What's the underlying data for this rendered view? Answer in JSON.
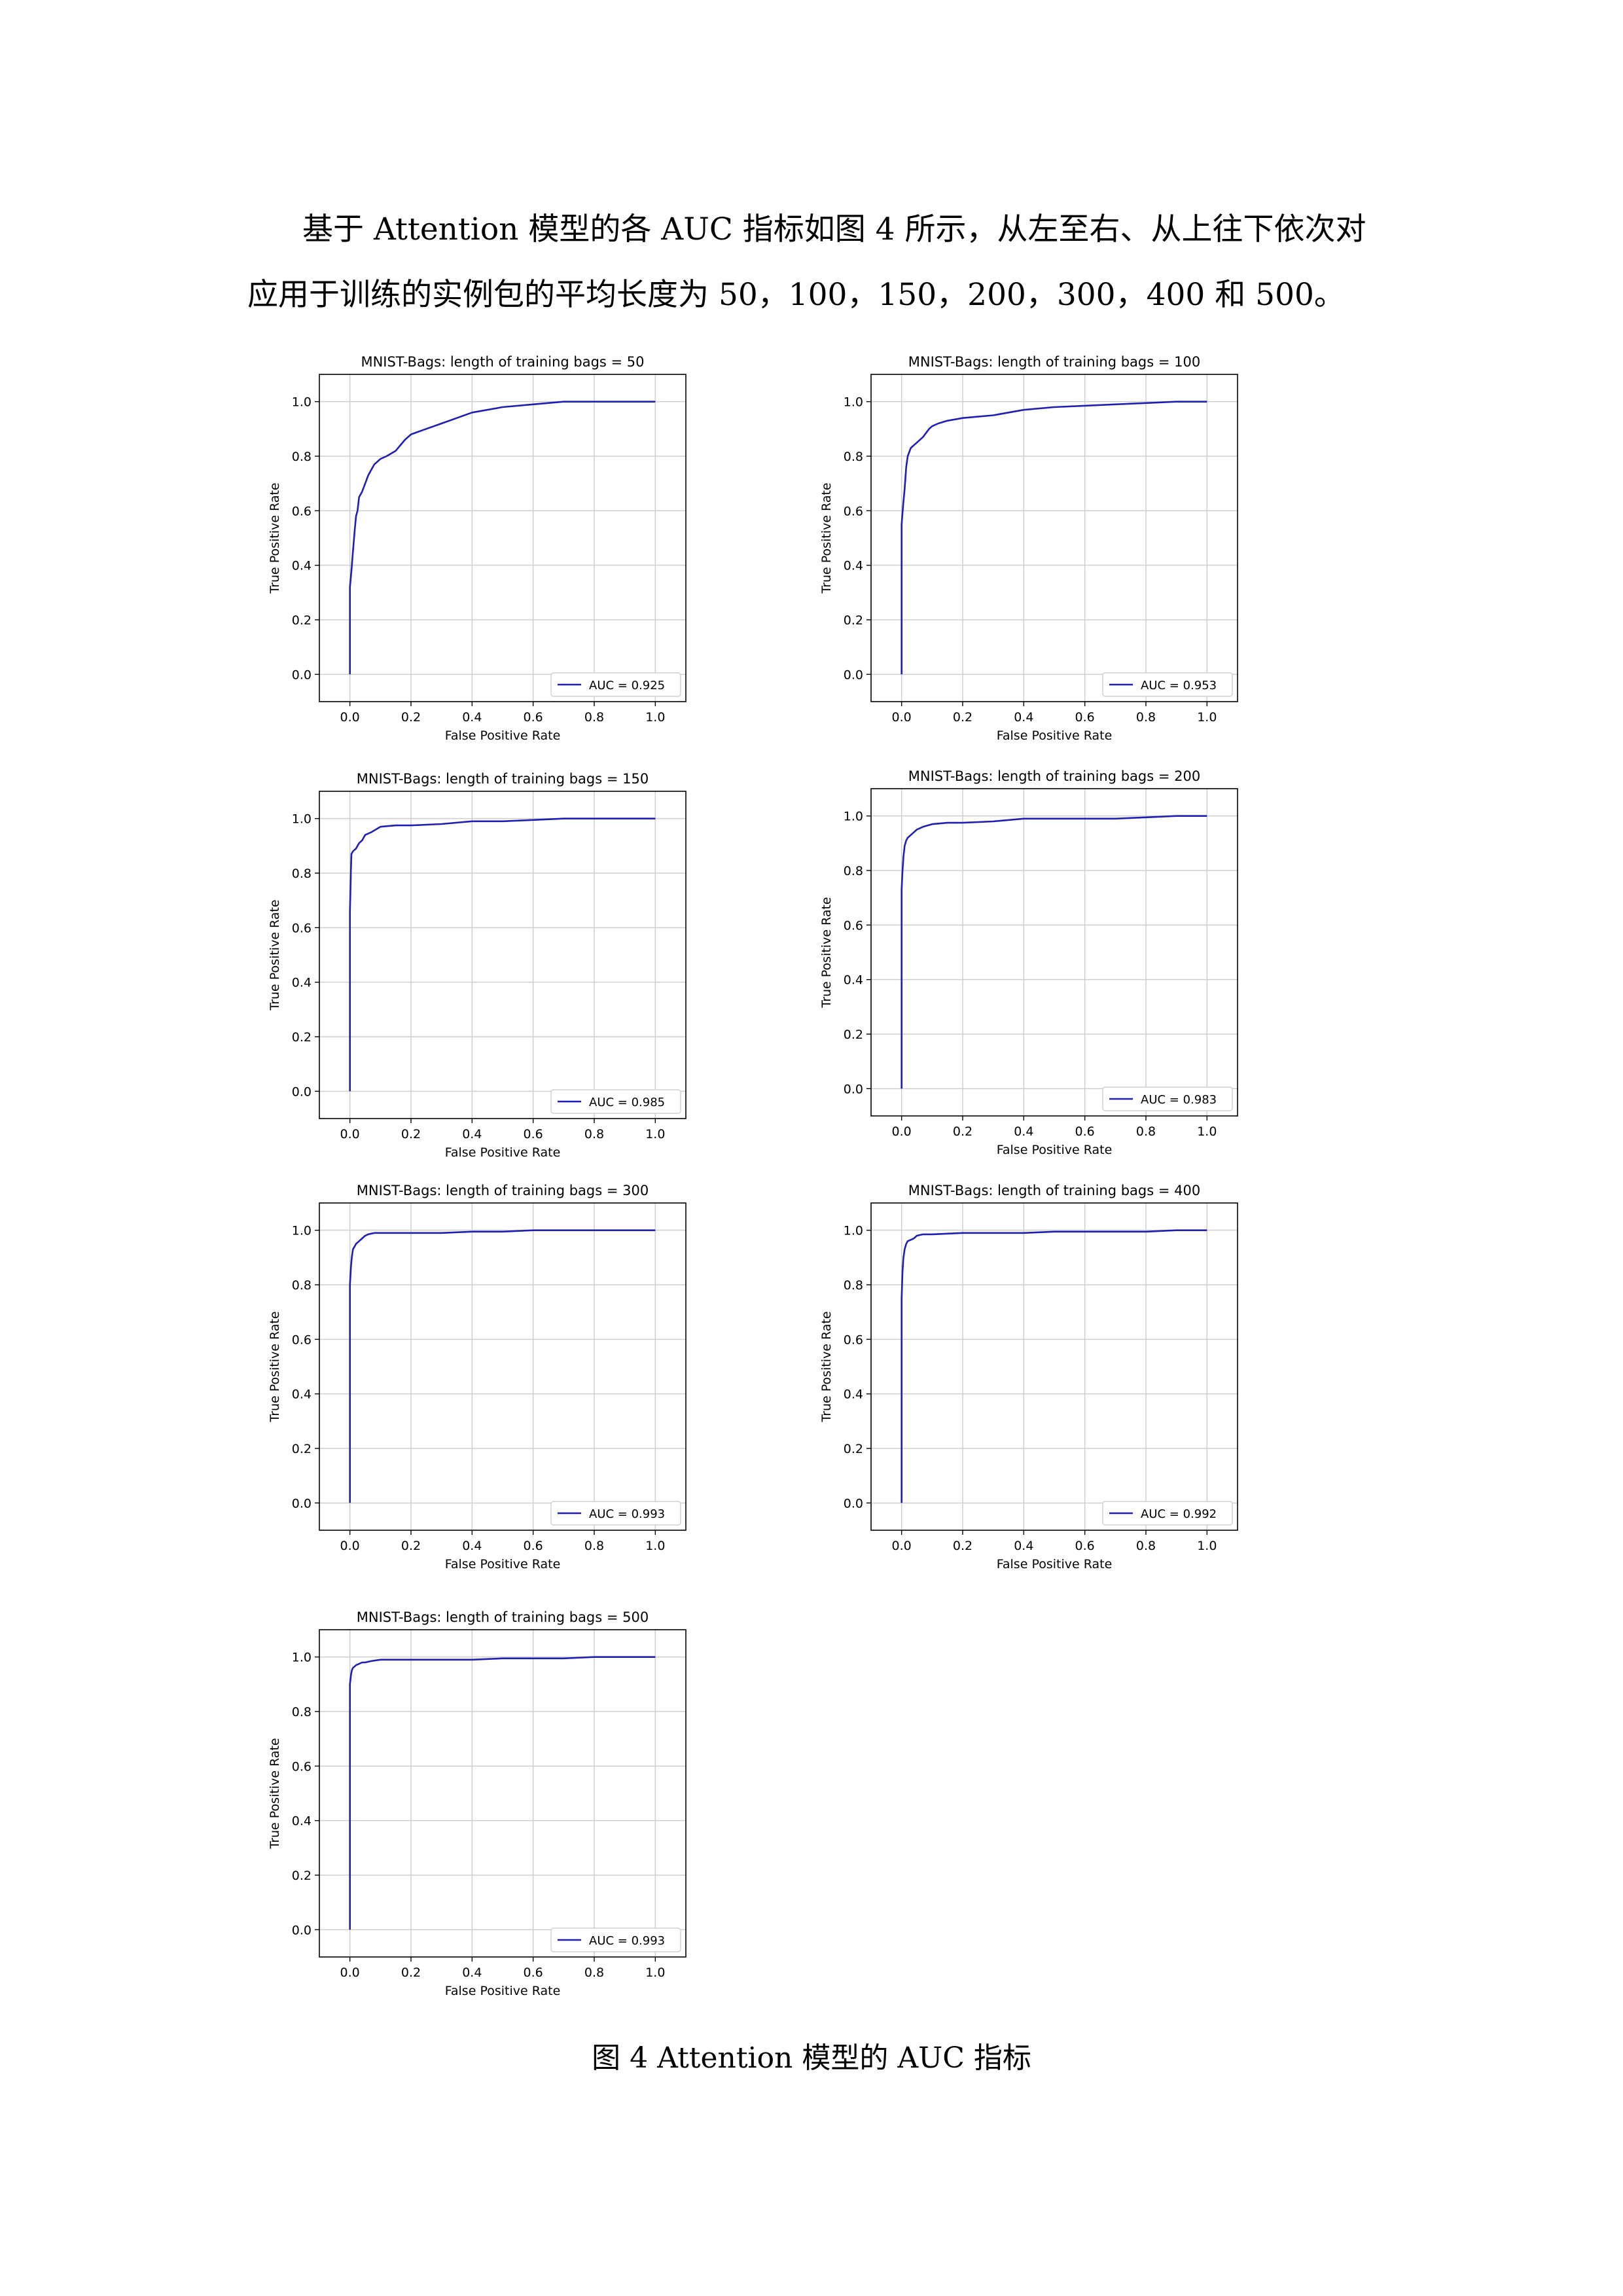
{
  "text": {
    "paragraph_line1": "基于 Attention 模型的各 AUC 指标如图 4 所示，从左至右、从上往下依次对",
    "paragraph_line2": "应用于训练的实例包的平均长度为 50，100，150，200，300，400 和 500。",
    "caption": "图 4 Attention 模型的 AUC 指标"
  },
  "colors": {
    "curve": "#1f1fb4",
    "grid": "#cfcfcf",
    "axis": "#000000"
  },
  "chart_data": [
    {
      "type": "line",
      "title": "MNIST-Bags: length of training bags = 50",
      "xlabel": "False Positive Rate",
      "ylabel": "True Positive Rate",
      "xlim": [
        -0.1,
        1.1
      ],
      "ylim": [
        -0.1,
        1.1
      ],
      "xticks": [
        "0.0",
        "0.2",
        "0.4",
        "0.6",
        "0.8",
        "1.0"
      ],
      "yticks": [
        "0.0",
        "0.2",
        "0.4",
        "0.6",
        "0.8",
        "1.0"
      ],
      "grid": true,
      "legend_position": "lower-right",
      "series": [
        {
          "name": "AUC = 0.925",
          "x": [
            0,
            0,
            0.005,
            0.01,
            0.015,
            0.02,
            0.025,
            0.03,
            0.04,
            0.05,
            0.06,
            0.07,
            0.08,
            0.1,
            0.12,
            0.15,
            0.18,
            0.2,
            0.25,
            0.3,
            0.35,
            0.4,
            0.45,
            0.5,
            0.6,
            0.7,
            0.8,
            0.9,
            1.0
          ],
          "y": [
            0,
            0.32,
            0.38,
            0.45,
            0.52,
            0.58,
            0.6,
            0.65,
            0.67,
            0.7,
            0.73,
            0.75,
            0.77,
            0.79,
            0.8,
            0.82,
            0.86,
            0.88,
            0.9,
            0.92,
            0.94,
            0.96,
            0.97,
            0.98,
            0.99,
            1.0,
            1.0,
            1.0,
            1.0
          ]
        }
      ]
    },
    {
      "type": "line",
      "title": "MNIST-Bags: length of training bags = 100",
      "xlabel": "False Positive Rate",
      "ylabel": "True Positive Rate",
      "xlim": [
        -0.1,
        1.1
      ],
      "ylim": [
        -0.1,
        1.1
      ],
      "xticks": [
        "0.0",
        "0.2",
        "0.4",
        "0.6",
        "0.8",
        "1.0"
      ],
      "yticks": [
        "0.0",
        "0.2",
        "0.4",
        "0.6",
        "0.8",
        "1.0"
      ],
      "grid": true,
      "legend_position": "lower-right",
      "series": [
        {
          "name": "AUC = 0.953",
          "x": [
            0,
            0,
            0.005,
            0.01,
            0.015,
            0.02,
            0.03,
            0.04,
            0.05,
            0.07,
            0.09,
            0.1,
            0.12,
            0.15,
            0.2,
            0.25,
            0.3,
            0.4,
            0.5,
            0.6,
            0.7,
            0.8,
            0.9,
            1.0
          ],
          "y": [
            0,
            0.55,
            0.62,
            0.68,
            0.76,
            0.8,
            0.83,
            0.84,
            0.85,
            0.87,
            0.9,
            0.91,
            0.92,
            0.93,
            0.94,
            0.945,
            0.95,
            0.97,
            0.98,
            0.985,
            0.99,
            0.995,
            1.0,
            1.0
          ]
        }
      ]
    },
    {
      "type": "line",
      "title": "MNIST-Bags: length of training bags = 150",
      "xlabel": "False Positive Rate",
      "ylabel": "True Positive Rate",
      "xlim": [
        -0.1,
        1.1
      ],
      "ylim": [
        -0.1,
        1.1
      ],
      "xticks": [
        "0.0",
        "0.2",
        "0.4",
        "0.6",
        "0.8",
        "1.0"
      ],
      "yticks": [
        "0.0",
        "0.2",
        "0.4",
        "0.6",
        "0.8",
        "1.0"
      ],
      "grid": true,
      "legend_position": "lower-right",
      "series": [
        {
          "name": "AUC = 0.985",
          "x": [
            0,
            0,
            0.003,
            0.005,
            0.01,
            0.02,
            0.03,
            0.04,
            0.05,
            0.07,
            0.1,
            0.15,
            0.2,
            0.3,
            0.4,
            0.5,
            0.6,
            0.7,
            0.8,
            0.9,
            1.0
          ],
          "y": [
            0,
            0.66,
            0.8,
            0.87,
            0.88,
            0.89,
            0.91,
            0.92,
            0.94,
            0.95,
            0.97,
            0.975,
            0.975,
            0.98,
            0.99,
            0.99,
            0.995,
            1.0,
            1.0,
            1.0,
            1.0
          ]
        }
      ]
    },
    {
      "type": "line",
      "title": "MNIST-Bags: length of training bags = 200",
      "xlabel": "False Positive Rate",
      "ylabel": "True Positive Rate",
      "xlim": [
        -0.1,
        1.1
      ],
      "ylim": [
        -0.1,
        1.1
      ],
      "xticks": [
        "0.0",
        "0.2",
        "0.4",
        "0.6",
        "0.8",
        "1.0"
      ],
      "yticks": [
        "0.0",
        "0.2",
        "0.4",
        "0.6",
        "0.8",
        "1.0"
      ],
      "grid": true,
      "legend_position": "lower-right",
      "series": [
        {
          "name": "AUC = 0.983",
          "x": [
            0,
            0,
            0.003,
            0.006,
            0.01,
            0.015,
            0.02,
            0.03,
            0.04,
            0.05,
            0.07,
            0.1,
            0.15,
            0.2,
            0.3,
            0.4,
            0.5,
            0.6,
            0.7,
            0.8,
            0.9,
            1.0
          ],
          "y": [
            0,
            0.73,
            0.8,
            0.85,
            0.89,
            0.91,
            0.92,
            0.93,
            0.94,
            0.95,
            0.96,
            0.97,
            0.975,
            0.975,
            0.98,
            0.99,
            0.99,
            0.99,
            0.99,
            0.995,
            1.0,
            1.0
          ]
        }
      ]
    },
    {
      "type": "line",
      "title": "MNIST-Bags: length of training bags = 300",
      "xlabel": "False Positive Rate",
      "ylabel": "True Positive Rate",
      "xlim": [
        -0.1,
        1.1
      ],
      "ylim": [
        -0.1,
        1.1
      ],
      "xticks": [
        "0.0",
        "0.2",
        "0.4",
        "0.6",
        "0.8",
        "1.0"
      ],
      "yticks": [
        "0.0",
        "0.2",
        "0.4",
        "0.6",
        "0.8",
        "1.0"
      ],
      "grid": true,
      "legend_position": "lower-right",
      "series": [
        {
          "name": "AUC = 0.993",
          "x": [
            0,
            0,
            0.003,
            0.006,
            0.01,
            0.015,
            0.02,
            0.03,
            0.04,
            0.05,
            0.06,
            0.08,
            0.1,
            0.2,
            0.3,
            0.4,
            0.5,
            0.6,
            0.8,
            1.0
          ],
          "y": [
            0,
            0.8,
            0.86,
            0.9,
            0.93,
            0.94,
            0.95,
            0.96,
            0.97,
            0.98,
            0.985,
            0.99,
            0.99,
            0.99,
            0.99,
            0.995,
            0.995,
            1.0,
            1.0,
            1.0
          ]
        }
      ]
    },
    {
      "type": "line",
      "title": "MNIST-Bags: length of training bags = 400",
      "xlabel": "False Positive Rate",
      "ylabel": "True Positive Rate",
      "xlim": [
        -0.1,
        1.1
      ],
      "ylim": [
        -0.1,
        1.1
      ],
      "xticks": [
        "0.0",
        "0.2",
        "0.4",
        "0.6",
        "0.8",
        "1.0"
      ],
      "yticks": [
        "0.0",
        "0.2",
        "0.4",
        "0.6",
        "0.8",
        "1.0"
      ],
      "grid": true,
      "legend_position": "lower-right",
      "series": [
        {
          "name": "AUC = 0.992",
          "x": [
            0,
            0,
            0.003,
            0.006,
            0.01,
            0.015,
            0.02,
            0.03,
            0.04,
            0.05,
            0.07,
            0.1,
            0.2,
            0.3,
            0.4,
            0.5,
            0.6,
            0.7,
            0.8,
            0.9,
            1.0
          ],
          "y": [
            0,
            0.75,
            0.85,
            0.9,
            0.93,
            0.95,
            0.96,
            0.965,
            0.97,
            0.98,
            0.985,
            0.985,
            0.99,
            0.99,
            0.99,
            0.995,
            0.995,
            0.995,
            0.995,
            1.0,
            1.0
          ]
        }
      ]
    },
    {
      "type": "line",
      "title": "MNIST-Bags: length of training bags = 500",
      "xlabel": "False Positive Rate",
      "ylabel": "True Positive Rate",
      "xlim": [
        -0.1,
        1.1
      ],
      "ylim": [
        -0.1,
        1.1
      ],
      "xticks": [
        "0.0",
        "0.2",
        "0.4",
        "0.6",
        "0.8",
        "1.0"
      ],
      "yticks": [
        "0.0",
        "0.2",
        "0.4",
        "0.6",
        "0.8",
        "1.0"
      ],
      "grid": true,
      "legend_position": "lower-right",
      "series": [
        {
          "name": "AUC = 0.993",
          "x": [
            0,
            0,
            0.003,
            0.006,
            0.01,
            0.015,
            0.02,
            0.03,
            0.04,
            0.05,
            0.07,
            0.1,
            0.2,
            0.3,
            0.4,
            0.5,
            0.6,
            0.7,
            0.8,
            0.9,
            1.0
          ],
          "y": [
            0,
            0.9,
            0.93,
            0.95,
            0.96,
            0.965,
            0.97,
            0.975,
            0.98,
            0.98,
            0.985,
            0.99,
            0.99,
            0.99,
            0.99,
            0.995,
            0.995,
            0.995,
            1.0,
            1.0,
            1.0
          ]
        }
      ]
    }
  ]
}
